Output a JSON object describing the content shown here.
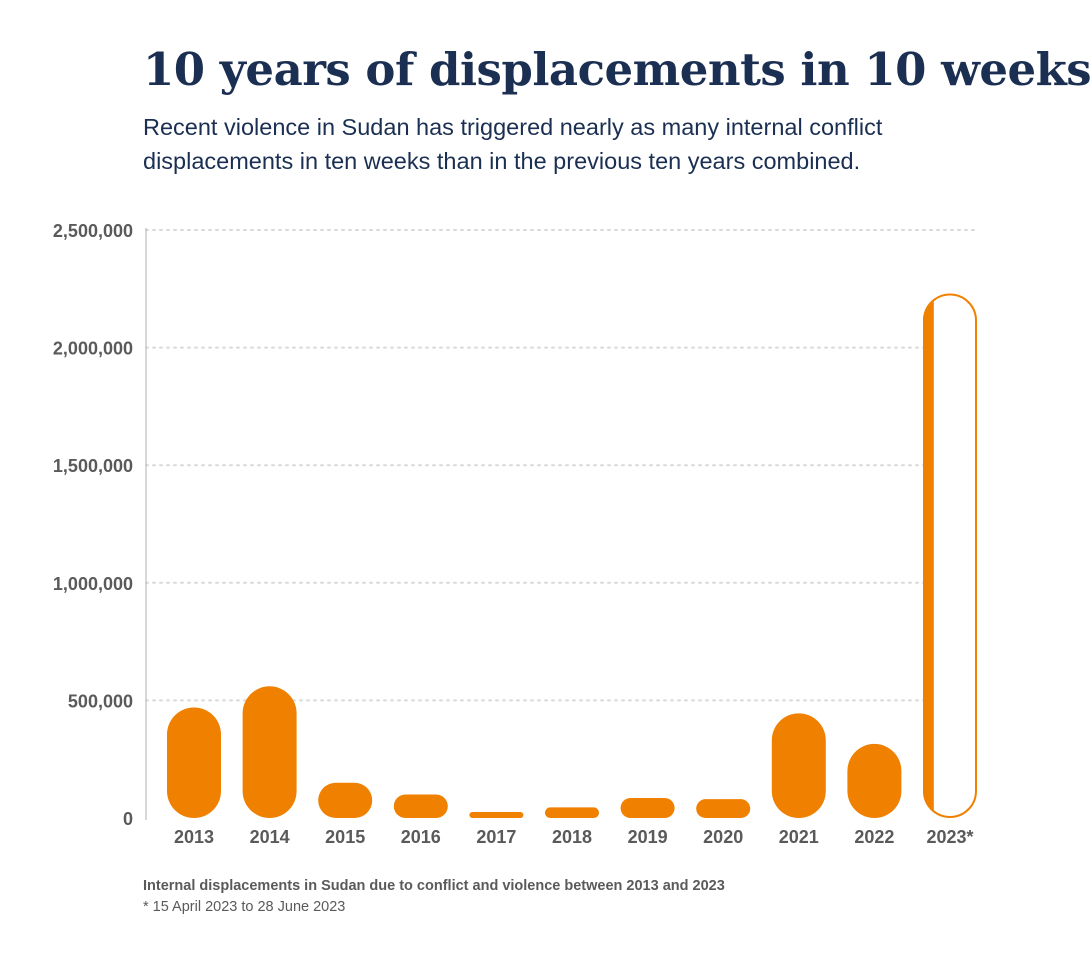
{
  "title": "10 years of displacements in 10 weeks",
  "subtitle": "Recent violence in Sudan has triggered nearly as many internal conflict displacements in ten weeks than in the previous ten years combined.",
  "caption": "Internal displacements in Sudan due to conflict and violence between 2013 and 2023",
  "footnote": "* 15 April 2023 to 28 June 2023",
  "colors": {
    "bar": "#f08000",
    "grid": "#d9d9d9",
    "text": "#5a5a5a",
    "title": "#1b2f52"
  },
  "chart_data": {
    "type": "bar",
    "categories": [
      "2013",
      "2014",
      "2015",
      "2016",
      "2017",
      "2018",
      "2019",
      "2020",
      "2021",
      "2022",
      "2023*"
    ],
    "values": [
      470000,
      560000,
      150000,
      100000,
      20000,
      45000,
      85000,
      80000,
      445000,
      315000,
      2230000
    ],
    "filled": [
      1,
      1,
      1,
      1,
      1,
      1,
      1,
      1,
      1,
      1,
      0.2
    ],
    "ylim": [
      0,
      2500000
    ],
    "yticks": [
      "0",
      "500,000",
      "1,000,000",
      "1,500,000",
      "2,000,000",
      "2,500,000"
    ],
    "ytick_values": [
      0,
      500000,
      1000000,
      1500000,
      2000000,
      2500000
    ],
    "grid": true,
    "xlabel": "",
    "ylabel": ""
  }
}
